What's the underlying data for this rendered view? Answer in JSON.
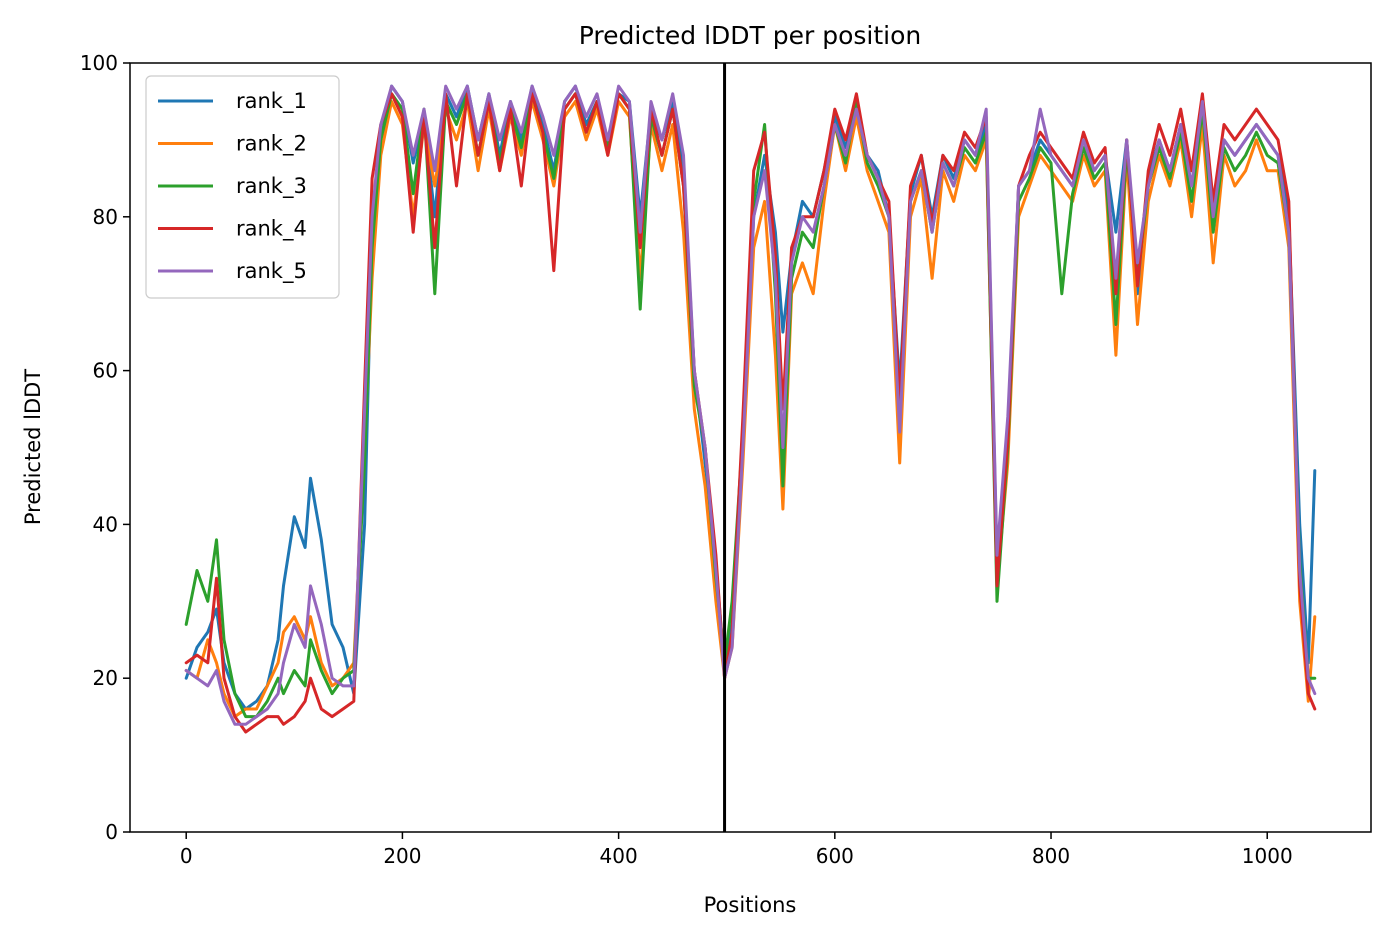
{
  "chart_data": {
    "type": "line",
    "title": "Predicted lDDT per position",
    "xlabel": "Positions",
    "ylabel": "Predicted lDDT",
    "xlim": [
      -52,
      1096
    ],
    "ylim": [
      0,
      100
    ],
    "xticks": [
      0,
      200,
      400,
      600,
      800,
      1000
    ],
    "yticks": [
      0,
      20,
      40,
      60,
      80,
      100
    ],
    "xtick_labels": [
      "0",
      "200",
      "400",
      "600",
      "800",
      "1000"
    ],
    "ytick_labels": [
      "0",
      "20",
      "40",
      "60",
      "80",
      "100"
    ],
    "grid": false,
    "legend_position": "upper-left",
    "vertical_line_x": 498,
    "vertical_line_color": "#000000",
    "x": [
      0,
      10,
      20,
      28,
      35,
      45,
      55,
      65,
      75,
      85,
      90,
      100,
      110,
      115,
      125,
      135,
      145,
      155,
      165,
      172,
      180,
      190,
      200,
      210,
      220,
      230,
      240,
      250,
      260,
      270,
      280,
      290,
      300,
      310,
      320,
      330,
      340,
      350,
      360,
      370,
      380,
      390,
      400,
      410,
      420,
      430,
      440,
      450,
      460,
      470,
      480,
      490,
      498,
      505,
      515,
      525,
      535,
      545,
      552,
      560,
      570,
      580,
      590,
      600,
      610,
      620,
      630,
      640,
      650,
      660,
      670,
      680,
      690,
      700,
      710,
      720,
      730,
      740,
      750,
      760,
      770,
      780,
      790,
      800,
      810,
      820,
      830,
      840,
      850,
      860,
      870,
      880,
      890,
      900,
      910,
      920,
      930,
      940,
      950,
      960,
      970,
      980,
      990,
      1000,
      1010,
      1020,
      1030,
      1038,
      1044
    ],
    "series": [
      {
        "name": "rank_1",
        "color": "#1f77b4",
        "values": [
          20,
          24,
          26,
          29,
          22,
          18,
          16,
          17,
          19,
          25,
          32,
          41,
          37,
          46,
          38,
          27,
          24,
          18,
          40,
          78,
          90,
          97,
          95,
          87,
          93,
          80,
          96,
          93,
          97,
          90,
          96,
          88,
          95,
          90,
          97,
          92,
          86,
          95,
          97,
          92,
          95,
          90,
          96,
          95,
          80,
          94,
          90,
          95,
          86,
          60,
          48,
          35,
          21,
          27,
          50,
          80,
          88,
          78,
          65,
          75,
          82,
          80,
          86,
          93,
          89,
          95,
          88,
          86,
          80,
          58,
          83,
          88,
          80,
          88,
          85,
          90,
          88,
          92,
          35,
          52,
          84,
          86,
          90,
          88,
          86,
          84,
          90,
          86,
          88,
          78,
          90,
          70,
          85,
          90,
          86,
          92,
          84,
          95,
          80,
          90,
          88,
          90,
          92,
          90,
          88,
          80,
          40,
          22,
          47
        ]
      },
      {
        "name": "rank_2",
        "color": "#ff7f0e",
        "values": [
          21,
          20,
          25,
          22,
          18,
          15,
          16,
          16,
          19,
          22,
          26,
          28,
          25,
          28,
          22,
          19,
          20,
          22,
          50,
          72,
          88,
          95,
          92,
          80,
          92,
          84,
          94,
          90,
          95,
          86,
          94,
          86,
          93,
          88,
          95,
          90,
          84,
          93,
          95,
          90,
          94,
          88,
          95,
          93,
          72,
          92,
          86,
          92,
          78,
          55,
          45,
          30,
          20,
          24,
          48,
          76,
          82,
          62,
          42,
          70,
          74,
          70,
          82,
          92,
          86,
          93,
          86,
          82,
          78,
          48,
          80,
          85,
          72,
          86,
          82,
          88,
          86,
          90,
          32,
          48,
          80,
          84,
          88,
          86,
          84,
          82,
          88,
          84,
          86,
          62,
          88,
          66,
          82,
          88,
          84,
          90,
          80,
          92,
          74,
          88,
          84,
          86,
          90,
          86,
          86,
          76,
          30,
          17,
          28
        ]
      },
      {
        "name": "rank_3",
        "color": "#2ca02c",
        "values": [
          27,
          34,
          30,
          38,
          25,
          18,
          15,
          15,
          17,
          20,
          18,
          21,
          19,
          25,
          21,
          18,
          20,
          21,
          48,
          76,
          90,
          96,
          94,
          83,
          94,
          70,
          95,
          92,
          96,
          88,
          95,
          87,
          94,
          89,
          96,
          91,
          85,
          94,
          96,
          91,
          95,
          89,
          96,
          94,
          68,
          93,
          88,
          94,
          84,
          58,
          50,
          33,
          22,
          30,
          52,
          82,
          92,
          70,
          45,
          72,
          78,
          76,
          84,
          92,
          87,
          95,
          87,
          84,
          80,
          55,
          82,
          86,
          78,
          87,
          84,
          89,
          87,
          91,
          30,
          50,
          82,
          85,
          89,
          87,
          70,
          83,
          89,
          85,
          87,
          66,
          89,
          72,
          84,
          89,
          85,
          91,
          82,
          94,
          78,
          89,
          86,
          88,
          91,
          88,
          87,
          78,
          35,
          20,
          20
        ]
      },
      {
        "name": "rank_4",
        "color": "#d62728",
        "values": [
          22,
          23,
          22,
          33,
          20,
          15,
          13,
          14,
          15,
          15,
          14,
          15,
          17,
          20,
          16,
          15,
          16,
          17,
          58,
          85,
          92,
          96,
          93,
          78,
          93,
          76,
          96,
          84,
          96,
          88,
          95,
          86,
          94,
          84,
          96,
          91,
          73,
          94,
          96,
          91,
          95,
          88,
          96,
          94,
          76,
          94,
          88,
          94,
          84,
          60,
          50,
          36,
          20,
          26,
          54,
          86,
          91,
          75,
          55,
          76,
          80,
          80,
          86,
          94,
          90,
          96,
          88,
          85,
          82,
          56,
          84,
          88,
          79,
          88,
          86,
          91,
          89,
          93,
          32,
          51,
          84,
          88,
          91,
          89,
          87,
          85,
          91,
          87,
          89,
          70,
          90,
          71,
          86,
          92,
          88,
          94,
          86,
          96,
          82,
          92,
          90,
          92,
          94,
          92,
          90,
          82,
          32,
          18,
          16
        ]
      },
      {
        "name": "rank_5",
        "color": "#9467bd",
        "values": [
          21,
          20,
          19,
          21,
          17,
          14,
          14,
          15,
          16,
          18,
          22,
          27,
          24,
          32,
          27,
          20,
          19,
          19,
          55,
          80,
          92,
          97,
          95,
          88,
          94,
          86,
          97,
          94,
          97,
          90,
          96,
          90,
          95,
          91,
          97,
          93,
          88,
          95,
          97,
          93,
          96,
          90,
          97,
          95,
          78,
          95,
          90,
          96,
          88,
          60,
          50,
          34,
          20,
          24,
          50,
          80,
          86,
          72,
          50,
          74,
          80,
          78,
          84,
          92,
          88,
          94,
          88,
          85,
          80,
          52,
          82,
          86,
          78,
          87,
          84,
          90,
          88,
          94,
          36,
          54,
          84,
          86,
          94,
          88,
          86,
          84,
          90,
          86,
          88,
          72,
          90,
          74,
          84,
          90,
          86,
          92,
          84,
          95,
          80,
          90,
          88,
          90,
          92,
          90,
          88,
          78,
          34,
          20,
          18
        ]
      }
    ]
  }
}
